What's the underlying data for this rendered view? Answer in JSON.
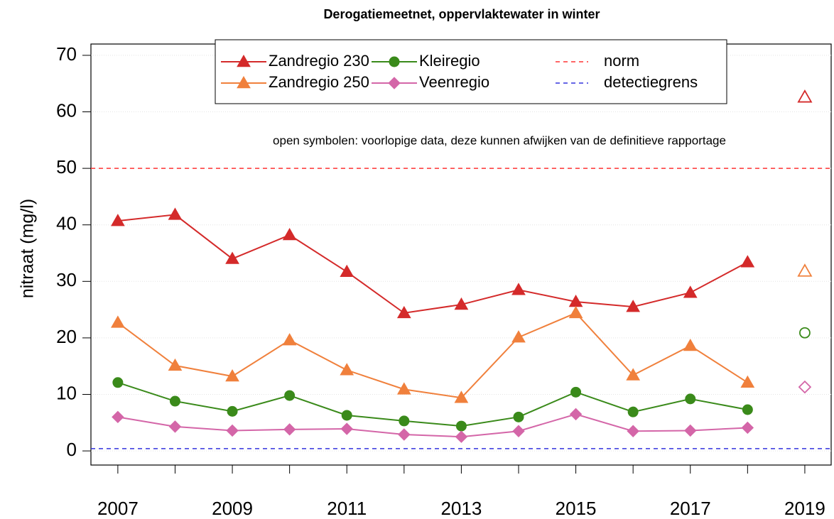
{
  "chart_data": {
    "type": "line",
    "title": "Derogatiemeetnet, oppervlaktewater in winter",
    "y_label": "nitraat (mg/l)",
    "annotation": "open symbolen: voorlopige data, deze kunnen afwijken van de definitieve rapportage",
    "x": [
      2007,
      2008,
      2009,
      2010,
      2011,
      2012,
      2013,
      2014,
      2015,
      2016,
      2017,
      2018,
      2019
    ],
    "open_symbols_last": true,
    "series": [
      {
        "name": "Zandregio 230",
        "color": "#d42a2a",
        "marker": "triangle",
        "values": [
          40.7,
          41.8,
          34.0,
          38.2,
          31.7,
          24.4,
          25.9,
          28.5,
          26.4,
          25.5,
          28.0,
          33.4,
          62.6
        ]
      },
      {
        "name": "Zandregio 250",
        "color": "#f0803c",
        "marker": "triangle",
        "values": [
          22.7,
          15.1,
          13.2,
          19.6,
          14.3,
          10.9,
          9.4,
          20.1,
          24.4,
          13.4,
          18.6,
          12.1,
          31.8
        ]
      },
      {
        "name": "Kleiregio",
        "color": "#3a8a1a",
        "marker": "circle",
        "values": [
          12.1,
          8.8,
          7.0,
          9.8,
          6.3,
          5.3,
          4.4,
          6.0,
          10.4,
          6.9,
          9.2,
          7.3,
          20.9
        ]
      },
      {
        "name": "Veenregio",
        "color": "#d466a8",
        "marker": "diamond",
        "values": [
          6.0,
          4.3,
          3.6,
          3.8,
          3.9,
          2.9,
          2.5,
          3.5,
          6.5,
          3.5,
          3.6,
          4.1,
          11.3
        ]
      }
    ],
    "hlines": [
      {
        "name": "norm",
        "value": 50,
        "color": "#ff3333"
      },
      {
        "name": "detectiegrens",
        "value": 0.4,
        "color": "#3333dd"
      }
    ],
    "xlim": [
      2006.53,
      2019.46
    ],
    "ylim": [
      -2.5,
      72
    ],
    "xticks": [
      2007,
      2009,
      2011,
      2013,
      2015,
      2017,
      2019
    ],
    "yticks": [
      0,
      10,
      20,
      30,
      40,
      50,
      60,
      70
    ],
    "grid": true
  }
}
